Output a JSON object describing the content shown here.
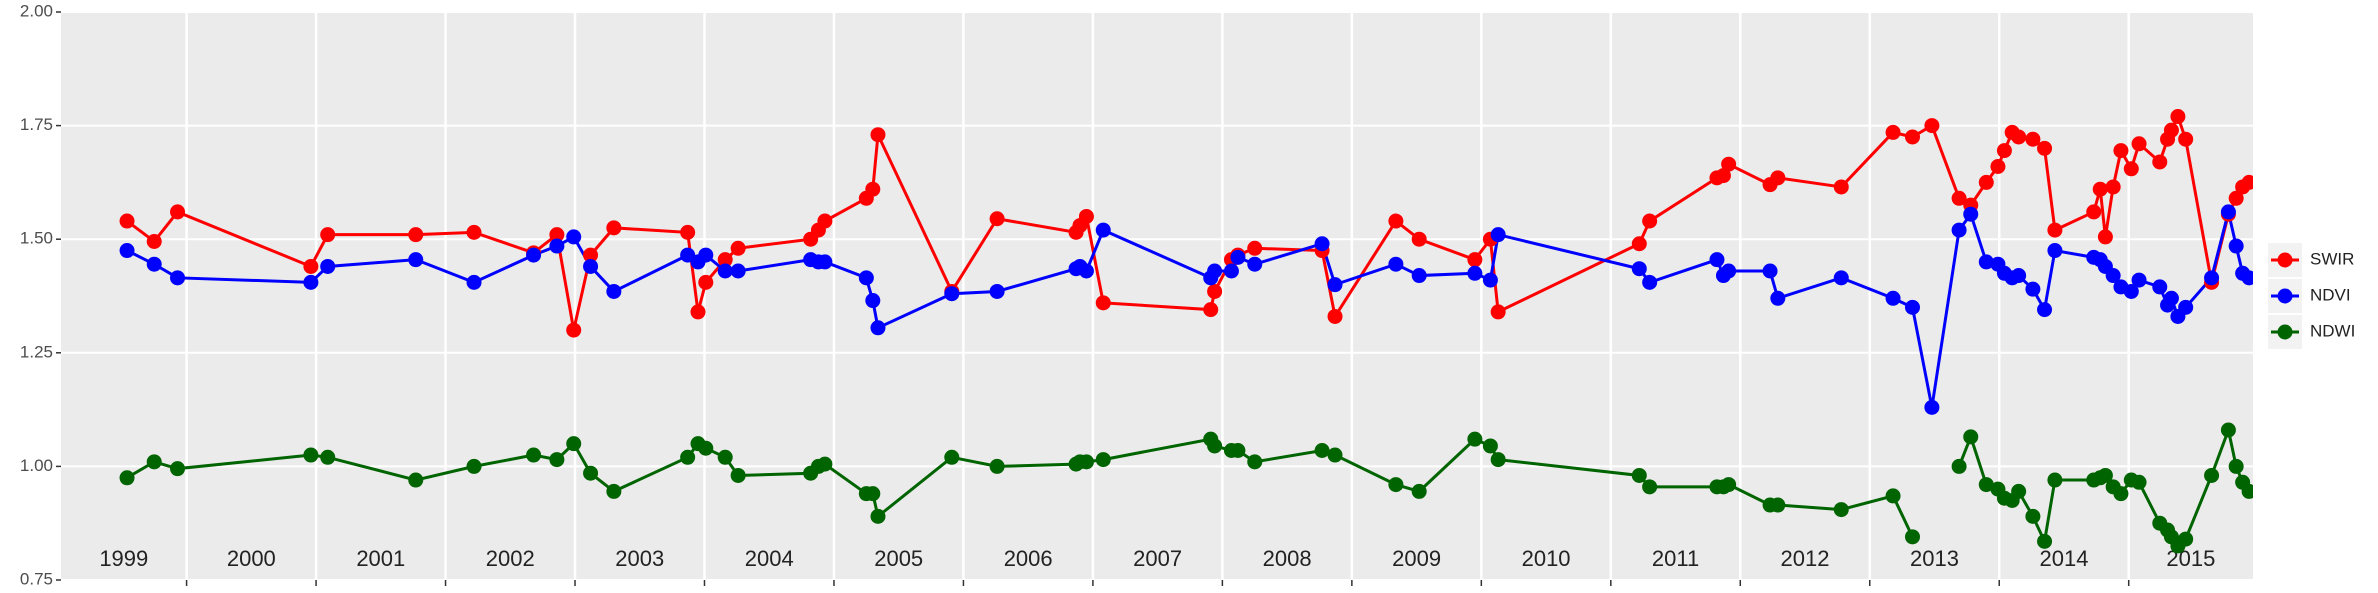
{
  "chart_data": {
    "type": "line",
    "x": [
      1999.54,
      1999.75,
      1999.93,
      2000.96,
      2001.09,
      2001.77,
      2002.22,
      2002.68,
      2002.86,
      2002.99,
      2003.12,
      2003.3,
      2003.87,
      2003.95,
      2004.01,
      2004.16,
      2004.26,
      2004.82,
      2004.88,
      2004.93,
      2005.25,
      2005.3,
      2005.34,
      2005.91,
      2006.26,
      2006.87,
      2006.9,
      2006.95,
      2007.08,
      2007.91,
      2007.94,
      2008.07,
      2008.12,
      2008.25,
      2008.77,
      2008.87,
      2009.34,
      2009.52,
      2009.95,
      2010.07,
      2010.13,
      2011.22,
      2011.3,
      2011.82,
      2011.87,
      2011.91,
      2012.23,
      2012.29,
      2012.78,
      2013.18,
      2013.33,
      2013.48,
      2013.69,
      2013.78,
      2013.9,
      2013.99,
      2014.04,
      2014.1,
      2014.15,
      2014.26,
      2014.35,
      2014.43,
      2014.73,
      2014.78,
      2014.82,
      2014.88,
      2014.94,
      2015.02,
      2015.08,
      2015.24,
      2015.3,
      2015.33,
      2015.38,
      2015.44,
      2015.64,
      2015.77,
      2015.83,
      2015.88,
      2015.93
    ],
    "series": [
      {
        "name": "SWIR",
        "color": "#ff0000",
        "values": [
          1.54,
          1.495,
          1.56,
          1.44,
          1.51,
          1.51,
          1.515,
          1.47,
          1.51,
          1.3,
          1.465,
          1.525,
          1.515,
          1.34,
          1.405,
          1.455,
          1.48,
          1.5,
          1.52,
          1.54,
          1.59,
          1.61,
          1.73,
          1.385,
          1.545,
          1.515,
          1.53,
          1.55,
          1.36,
          1.345,
          1.385,
          1.455,
          1.465,
          1.48,
          1.475,
          1.33,
          1.54,
          1.5,
          1.455,
          1.5,
          1.34,
          1.49,
          1.54,
          1.635,
          1.64,
          1.665,
          1.62,
          1.635,
          1.615,
          1.735,
          1.725,
          1.75,
          1.59,
          1.575,
          1.625,
          1.66,
          1.695,
          1.735,
          1.725,
          1.72,
          1.7,
          1.52,
          1.56,
          1.61,
          1.505,
          1.615,
          1.695,
          1.655,
          1.71,
          1.67,
          1.72,
          1.74,
          1.77,
          1.72,
          1.405,
          1.555,
          1.59,
          1.615,
          1.625
        ]
      },
      {
        "name": "NDVI",
        "color": "#0000ff",
        "values": [
          1.475,
          1.445,
          1.415,
          1.405,
          1.44,
          1.455,
          1.405,
          1.465,
          1.485,
          1.505,
          1.44,
          1.385,
          1.465,
          1.45,
          1.465,
          1.43,
          1.43,
          1.455,
          1.45,
          1.45,
          1.415,
          1.365,
          1.305,
          1.38,
          1.385,
          1.435,
          1.44,
          1.43,
          1.52,
          1.415,
          1.43,
          1.43,
          1.46,
          1.445,
          1.49,
          1.4,
          1.445,
          1.42,
          1.425,
          1.41,
          1.51,
          1.435,
          1.405,
          1.455,
          1.42,
          1.43,
          1.43,
          1.37,
          1.415,
          1.37,
          1.35,
          1.13,
          1.52,
          1.555,
          1.45,
          1.445,
          1.425,
          1.415,
          1.42,
          1.39,
          1.345,
          1.475,
          1.46,
          1.455,
          1.44,
          1.42,
          1.395,
          1.385,
          1.41,
          1.395,
          1.355,
          1.37,
          1.33,
          1.35,
          1.415,
          1.56,
          1.485,
          1.425,
          1.415
        ]
      },
      {
        "name": "NDWI",
        "color": "#006400",
        "values": [
          0.975,
          1.01,
          0.995,
          1.025,
          1.02,
          0.97,
          1.0,
          1.025,
          1.015,
          1.05,
          0.985,
          0.945,
          1.02,
          1.05,
          1.04,
          1.02,
          0.98,
          0.985,
          1.0,
          1.005,
          0.94,
          0.94,
          0.89,
          1.02,
          1.0,
          1.005,
          1.01,
          1.01,
          1.015,
          1.06,
          1.045,
          1.035,
          1.035,
          1.01,
          1.035,
          1.025,
          0.96,
          0.945,
          1.06,
          1.045,
          1.015,
          0.98,
          0.955,
          0.955,
          0.955,
          0.96,
          0.915,
          0.915,
          0.905,
          0.935,
          0.845,
          null,
          1.0,
          1.065,
          0.96,
          0.95,
          0.93,
          0.925,
          0.945,
          0.89,
          0.835,
          0.97,
          0.97,
          0.975,
          0.98,
          0.955,
          0.94,
          0.97,
          0.965,
          0.875,
          0.86,
          0.845,
          0.825,
          0.84,
          0.98,
          1.08,
          1.0,
          0.965,
          0.945
        ]
      }
    ],
    "xlim": [
      1999.03,
      2015.96
    ],
    "xticks": [
      2000,
      2001,
      2002,
      2003,
      2004,
      2005,
      2006,
      2007,
      2008,
      2009,
      2010,
      2011,
      2012,
      2013,
      2014,
      2015
    ],
    "year_labels": [
      "1999",
      "2000",
      "2001",
      "2002",
      "2003",
      "2004",
      "2005",
      "2006",
      "2007",
      "2008",
      "2009",
      "2010",
      "2011",
      "2012",
      "2013",
      "2014",
      "2015"
    ],
    "ylim": [
      0.75,
      2.0
    ],
    "yticks": [
      0.75,
      {
        "value": 1.0,
        "label": "1.00"
      },
      1.25,
      {
        "value": 1.5,
        "label": "1.50"
      },
      1.75,
      {
        "value": 2.0,
        "label": "2.00"
      }
    ],
    "grid": true,
    "legend": "right"
  }
}
